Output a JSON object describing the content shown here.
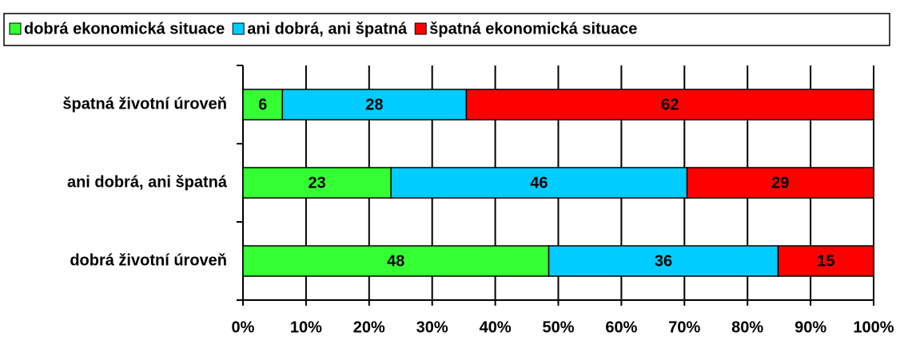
{
  "chart_data": {
    "type": "bar",
    "orientation": "horizontal",
    "stack": "percent",
    "categories": [
      "špatná životní úroveň",
      "ani dobrá, ani špatná",
      "dobrá životní úroveň"
    ],
    "series": [
      {
        "name": "dobrá ekonomická situace",
        "color": "#33ff33",
        "values": [
          6,
          23,
          48
        ]
      },
      {
        "name": "ani dobrá, ani špatná",
        "color": "#00ccff",
        "values": [
          28,
          46,
          36
        ]
      },
      {
        "name": "špatná ekonomická situace",
        "color": "#ff0000",
        "values": [
          62,
          29,
          15
        ]
      }
    ],
    "xlim": [
      0,
      100
    ],
    "xticks": [
      {
        "value": 0,
        "label": "0%"
      },
      {
        "value": 10,
        "label": "10%"
      },
      {
        "value": 20,
        "label": "20%"
      },
      {
        "value": 30,
        "label": "30%"
      },
      {
        "value": 40,
        "label": "40%"
      },
      {
        "value": 50,
        "label": "50%"
      },
      {
        "value": 60,
        "label": "60%"
      },
      {
        "value": 70,
        "label": "70%"
      },
      {
        "value": 80,
        "label": "80%"
      },
      {
        "value": 90,
        "label": "90%"
      },
      {
        "value": 100,
        "label": "100%"
      }
    ],
    "grid": true,
    "legend": "top"
  }
}
